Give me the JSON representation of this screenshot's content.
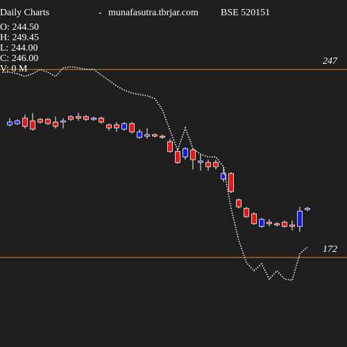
{
  "chart_data": {
    "type": "candlestick",
    "title": "Daily Charts",
    "separator": "-",
    "site": "munafasutra.tbrjar.com",
    "symbol": "BSE 520151",
    "info": [
      "O: 244.50",
      "H: 249.45",
      "L: 244.00",
      "C: 246.00",
      "V: 0  M"
    ],
    "ylim": [
      136.3,
      274.7
    ],
    "yticks": [
      247,
      172
    ],
    "reference_color": "#e8892a",
    "up_color": "#1a1adc",
    "down_color": "#e01818",
    "open": [
      224.9,
      225.4,
      227.6,
      226.5,
      227.1,
      227.1,
      226.0,
      226.0,
      228.2,
      228.2,
      228.2,
      227.1,
      227.6,
      224.9,
      224.9,
      223.2,
      225.4,
      219.9,
      220.4,
      221.0,
      220.4,
      218.2,
      214.3,
      212.1,
      214.9,
      209.9,
      209.9,
      209.9,
      203.3,
      205.5,
      195.0,
      191.6,
      189.4,
      184.4,
      186.1,
      185.5,
      186.1,
      185.0,
      184.4,
      191.1
    ],
    "high": [
      227.6,
      227.1,
      229.0,
      229.6,
      227.6,
      227.6,
      228.2,
      227.6,
      228.7,
      229.8,
      228.7,
      228.2,
      228.2,
      225.4,
      226.0,
      226.0,
      226.0,
      223.2,
      223.7,
      221.5,
      221.0,
      219.3,
      215.4,
      216.0,
      215.4,
      213.2,
      211.0,
      211.0,
      208.2,
      206.0,
      195.5,
      192.2,
      190.0,
      187.8,
      187.2,
      186.1,
      186.7,
      186.7,
      192.2,
      192.2
    ],
    "low": [
      224.3,
      224.9,
      223.5,
      222.6,
      225.4,
      224.9,
      223.5,
      223.5,
      226.5,
      226.5,
      226.5,
      226.5,
      225.4,
      222.6,
      222.1,
      222.6,
      221.5,
      219.3,
      219.3,
      219.9,
      219.3,
      213.8,
      209.3,
      211.0,
      207.1,
      206.6,
      206.6,
      207.1,
      202.2,
      197.7,
      191.6,
      187.8,
      185.0,
      183.9,
      184.4,
      184.4,
      183.9,
      182.8,
      182.3,
      190.5
    ],
    "close": [
      226.0,
      226.5,
      224.3,
      223.2,
      226.0,
      225.4,
      224.3,
      226.5,
      227.1,
      227.6,
      227.1,
      227.6,
      226.0,
      223.7,
      223.7,
      225.4,
      222.1,
      222.1,
      221.0,
      220.4,
      219.9,
      214.3,
      209.9,
      215.4,
      211.0,
      210.5,
      208.2,
      208.2,
      205.5,
      198.3,
      192.2,
      188.3,
      185.5,
      187.2,
      185.5,
      185.0,
      184.4,
      184.4,
      190.5,
      191.6
    ],
    "line": {
      "color": "#ffffff",
      "x": [
        -1,
        0,
        1,
        2,
        3,
        4,
        5,
        6,
        7,
        8,
        9,
        10,
        11,
        12,
        13,
        14,
        15,
        16,
        17,
        18,
        19,
        20,
        21,
        22,
        23,
        24,
        25,
        26,
        27,
        28,
        29,
        30,
        31,
        32,
        33,
        34,
        35,
        36,
        37,
        38,
        39
      ],
      "values": [
        245.9,
        245.9,
        245.3,
        244.2,
        245.3,
        247.0,
        245.9,
        244.2,
        247.6,
        248.1,
        247.6,
        247.0,
        247.0,
        244.8,
        242.6,
        240.4,
        238.7,
        237.6,
        237.0,
        236.5,
        235.4,
        230.9,
        222.6,
        214.9,
        223.7,
        215.4,
        213.2,
        212.1,
        212.1,
        208.2,
        191.6,
        178.9,
        170.0,
        166.7,
        169.5,
        163.4,
        166.7,
        163.4,
        162.9,
        173.4,
        176.1
      ]
    }
  }
}
